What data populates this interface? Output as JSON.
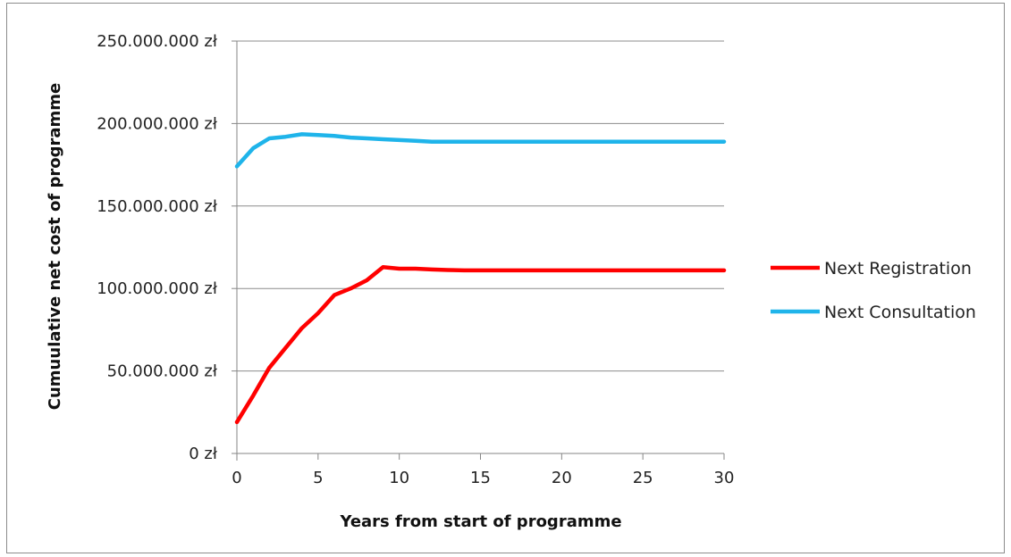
{
  "chart_data": {
    "type": "line",
    "title": "",
    "xlabel": "Years from start of programme",
    "ylabel": "Cumuulative net cost of programme",
    "xlim": [
      0,
      30
    ],
    "ylim": [
      0,
      250000000
    ],
    "x_ticks": [
      "0",
      "5",
      "10",
      "15",
      "20",
      "25",
      "30"
    ],
    "y_ticks": [
      "0 zł",
      "50.000.000 zł",
      "100.000.000 zł",
      "150.000.000 zł",
      "200.000.000 zł",
      "250.000.000 zł"
    ],
    "grid": "horizontal",
    "legend_position": "right",
    "x": [
      0,
      1,
      2,
      3,
      4,
      5,
      6,
      7,
      8,
      9,
      10,
      11,
      12,
      13,
      14,
      15,
      16,
      17,
      18,
      19,
      20,
      21,
      22,
      23,
      24,
      25,
      26,
      27,
      28,
      29,
      30
    ],
    "series": [
      {
        "name": "Next Registration",
        "color": "#ff0000",
        "values": [
          19000000,
          35000000,
          52000000,
          64000000,
          76000000,
          85000000,
          96000000,
          100000000,
          105000000,
          113000000,
          112000000,
          112000000,
          111500000,
          111200000,
          111000000,
          111000000,
          111000000,
          111000000,
          111000000,
          111000000,
          111000000,
          111000000,
          111000000,
          111000000,
          111000000,
          111000000,
          111000000,
          111000000,
          111000000,
          111000000,
          111000000
        ]
      },
      {
        "name": "Next Consultation",
        "color": "#1fb4ea",
        "values": [
          174000000,
          185000000,
          191000000,
          192000000,
          193500000,
          193000000,
          192500000,
          191500000,
          191000000,
          190500000,
          190000000,
          189500000,
          189000000,
          189000000,
          189000000,
          189000000,
          189000000,
          189000000,
          189000000,
          189000000,
          189000000,
          189000000,
          189000000,
          189000000,
          189000000,
          189000000,
          189000000,
          189000000,
          189000000,
          189000000,
          189000000
        ]
      }
    ]
  }
}
